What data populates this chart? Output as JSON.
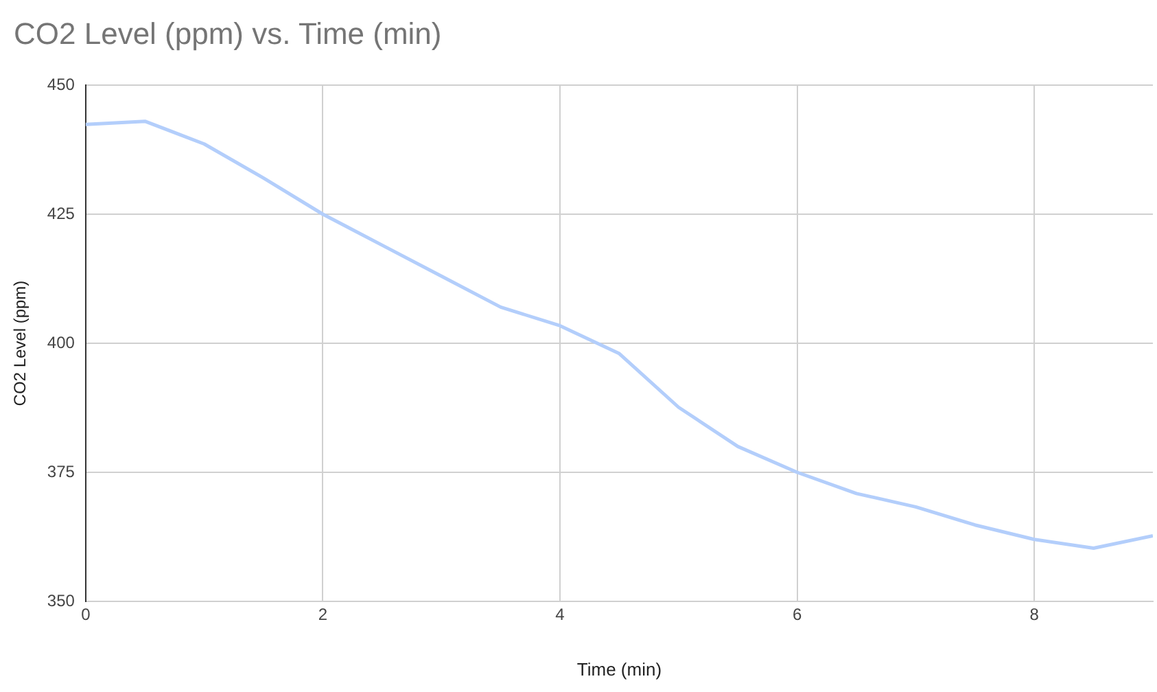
{
  "chart_data": {
    "type": "line",
    "title": "CO2 Level (ppm) vs. Time (min)",
    "xlabel": "Time (min)",
    "ylabel": "CO2 Level (ppm)",
    "x": [
      0,
      0.5,
      1,
      1.5,
      2,
      2.5,
      3,
      3.5,
      4,
      4.5,
      5,
      5.5,
      6,
      6.5,
      7,
      7.5,
      8,
      8.5,
      9
    ],
    "series": [
      {
        "color": "#b3cefb",
        "values": [
          442.4,
          443,
          438.6,
          432,
          425,
          419,
          413,
          407,
          403.4,
          398,
          387.6,
          380,
          375,
          370.9,
          368.3,
          364.8,
          362,
          360.3,
          362.7
        ]
      }
    ],
    "xlim": [
      0,
      9
    ],
    "xticks": [
      0,
      2,
      4,
      6,
      8
    ],
    "ylim": [
      350,
      450
    ],
    "yticks": [
      350,
      375,
      400,
      425,
      450
    ],
    "grid": true,
    "legend": false,
    "marker": "none",
    "line_style": "solid"
  }
}
